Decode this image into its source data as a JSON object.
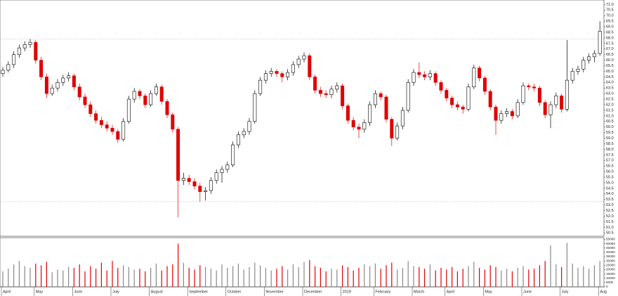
{
  "chart_data": {
    "type": "candlestick",
    "ylim": [
      50.2,
      71.4
    ],
    "yticks": [
      {
        "value": 50.5,
        "label": "50.5"
      },
      {
        "value": 51,
        "label": "51.0"
      },
      {
        "value": 51.5,
        "label": "51.5"
      },
      {
        "value": 52,
        "label": "52.0"
      },
      {
        "value": 52.5,
        "label": "52.5"
      },
      {
        "value": 53,
        "label": "53.0"
      },
      {
        "value": 53.5,
        "label": "53.5"
      },
      {
        "value": 54,
        "label": "54.0"
      },
      {
        "value": 54.5,
        "label": "54.5"
      },
      {
        "value": 55,
        "label": "55.0"
      },
      {
        "value": 55.5,
        "label": "55.5"
      },
      {
        "value": 56,
        "label": "56.0"
      },
      {
        "value": 56.5,
        "label": "56.5"
      },
      {
        "value": 57,
        "label": "57.0"
      },
      {
        "value": 57.5,
        "label": "57.5"
      },
      {
        "value": 58,
        "label": "58.0"
      },
      {
        "value": 58.5,
        "label": "58.5"
      },
      {
        "value": 59,
        "label": "59.0"
      },
      {
        "value": 59.5,
        "label": "59.5"
      },
      {
        "value": 60,
        "label": "60.0"
      },
      {
        "value": 60.5,
        "label": "60.5"
      },
      {
        "value": 61,
        "label": "61.0"
      },
      {
        "value": 61.5,
        "label": "61.5"
      },
      {
        "value": 62,
        "label": "62.0"
      },
      {
        "value": 62.5,
        "label": "62.5"
      },
      {
        "value": 63,
        "label": "63.0"
      },
      {
        "value": 63.5,
        "label": "63.5"
      },
      {
        "value": 64,
        "label": "64.0"
      },
      {
        "value": 64.5,
        "label": "64.5"
      },
      {
        "value": 65,
        "label": "65.0"
      },
      {
        "value": 65.5,
        "label": "65.5"
      },
      {
        "value": 66,
        "label": "66.0"
      },
      {
        "value": 66.5,
        "label": "66.5"
      },
      {
        "value": 67,
        "label": "67.0"
      },
      {
        "value": 67.5,
        "label": "67.5"
      },
      {
        "value": 68,
        "label": "68.0"
      },
      {
        "value": 68.5,
        "label": "68.5"
      },
      {
        "value": 69,
        "label": "69.0"
      },
      {
        "value": 69.5,
        "label": "69.5"
      },
      {
        "value": 70,
        "label": "70.0"
      },
      {
        "value": 70.5,
        "label": "70.5"
      },
      {
        "value": 71,
        "label": "71.0"
      }
    ],
    "ref_lines": [
      67.9,
      53.3
    ],
    "up_color": "#000000",
    "down_color": "#e00000",
    "candles": [
      [
        64.8,
        65.4,
        64.5,
        65.1
      ],
      [
        65.1,
        65.9,
        64.9,
        65.6
      ],
      [
        65.6,
        66.8,
        65.3,
        66.5
      ],
      [
        66.5,
        67.4,
        66.2,
        67.1
      ],
      [
        67.1,
        67.7,
        66.8,
        67.4
      ],
      [
        67.4,
        67.9,
        67.1,
        67.6
      ],
      [
        67.6,
        67.8,
        65.7,
        66.0
      ],
      [
        66.0,
        66.3,
        64.2,
        64.5
      ],
      [
        64.5,
        64.8,
        62.6,
        63.0
      ],
      [
        63.0,
        63.8,
        62.8,
        63.5
      ],
      [
        63.5,
        64.3,
        63.2,
        64.0
      ],
      [
        64.0,
        64.7,
        63.7,
        64.4
      ],
      [
        64.4,
        64.9,
        64.1,
        64.6
      ],
      [
        64.6,
        64.8,
        63.3,
        63.6
      ],
      [
        63.6,
        63.9,
        62.4,
        62.7
      ],
      [
        62.7,
        63.0,
        61.7,
        62.0
      ],
      [
        62.0,
        62.3,
        60.9,
        61.2
      ],
      [
        61.2,
        61.5,
        60.3,
        60.6
      ],
      [
        60.6,
        60.9,
        59.9,
        60.2
      ],
      [
        60.2,
        60.5,
        59.6,
        59.9
      ],
      [
        59.9,
        60.2,
        59.3,
        59.6
      ],
      [
        59.6,
        59.8,
        58.6,
        58.9
      ],
      [
        58.9,
        60.8,
        58.7,
        60.5
      ],
      [
        60.5,
        62.8,
        60.3,
        62.5
      ],
      [
        62.5,
        63.5,
        62.2,
        63.2
      ],
      [
        63.2,
        63.4,
        62.5,
        62.8
      ],
      [
        62.8,
        63.0,
        61.7,
        62.0
      ],
      [
        62.0,
        63.3,
        61.8,
        63.0
      ],
      [
        63.0,
        63.9,
        62.8,
        63.6
      ],
      [
        63.6,
        63.8,
        62.0,
        62.3
      ],
      [
        62.3,
        62.5,
        60.8,
        61.1
      ],
      [
        61.1,
        61.3,
        59.5,
        59.8
      ],
      [
        59.8,
        60.0,
        51.9,
        55.2
      ],
      [
        55.2,
        55.9,
        54.8,
        55.4
      ],
      [
        55.4,
        55.7,
        54.8,
        55.1
      ],
      [
        55.1,
        55.4,
        54.4,
        54.7
      ],
      [
        54.7,
        55.0,
        53.3,
        54.2
      ],
      [
        54.2,
        54.6,
        53.4,
        54.3
      ],
      [
        54.3,
        55.5,
        54.0,
        55.2
      ],
      [
        55.2,
        56.2,
        54.9,
        55.9
      ],
      [
        55.9,
        56.5,
        55.0,
        56.2
      ],
      [
        56.2,
        56.9,
        55.9,
        56.6
      ],
      [
        56.6,
        58.7,
        56.4,
        58.4
      ],
      [
        58.4,
        59.6,
        58.1,
        59.3
      ],
      [
        59.3,
        59.9,
        59.0,
        59.6
      ],
      [
        59.6,
        60.8,
        59.3,
        60.5
      ],
      [
        60.5,
        63.3,
        60.3,
        63.0
      ],
      [
        63.0,
        64.5,
        62.8,
        64.2
      ],
      [
        64.2,
        65.1,
        63.9,
        64.8
      ],
      [
        64.8,
        65.3,
        64.5,
        65.0
      ],
      [
        65.0,
        65.2,
        64.5,
        64.8
      ],
      [
        64.8,
        65.0,
        64.0,
        64.5
      ],
      [
        64.5,
        65.2,
        64.2,
        64.9
      ],
      [
        64.9,
        65.9,
        64.6,
        65.6
      ],
      [
        65.6,
        66.4,
        65.3,
        66.1
      ],
      [
        66.1,
        66.7,
        65.8,
        66.4
      ],
      [
        66.4,
        66.6,
        64.2,
        64.5
      ],
      [
        64.5,
        64.7,
        63.0,
        63.3
      ],
      [
        63.3,
        63.6,
        62.7,
        63.0
      ],
      [
        63.0,
        63.3,
        62.6,
        62.9
      ],
      [
        62.9,
        63.7,
        62.6,
        63.4
      ],
      [
        63.4,
        64.0,
        63.1,
        63.7
      ],
      [
        63.7,
        63.9,
        61.6,
        61.9
      ],
      [
        61.9,
        62.1,
        60.3,
        60.6
      ],
      [
        60.6,
        60.9,
        59.7,
        60.0
      ],
      [
        60.0,
        60.3,
        59.0,
        59.8
      ],
      [
        59.8,
        60.7,
        59.5,
        60.4
      ],
      [
        60.4,
        62.3,
        60.1,
        62.0
      ],
      [
        62.0,
        63.3,
        61.7,
        63.0
      ],
      [
        63.0,
        63.2,
        62.4,
        62.7
      ],
      [
        62.7,
        62.9,
        60.4,
        60.7
      ],
      [
        60.7,
        60.9,
        58.3,
        59.0
      ],
      [
        59.0,
        60.4,
        58.8,
        60.1
      ],
      [
        60.1,
        61.8,
        59.8,
        61.5
      ],
      [
        61.5,
        64.3,
        61.3,
        64.0
      ],
      [
        64.0,
        65.2,
        63.7,
        64.9
      ],
      [
        64.9,
        65.8,
        64.4,
        64.7
      ],
      [
        64.7,
        65.0,
        64.2,
        64.5
      ],
      [
        64.5,
        65.1,
        64.2,
        64.8
      ],
      [
        64.8,
        65.0,
        63.7,
        64.0
      ],
      [
        64.0,
        64.2,
        63.0,
        63.3
      ],
      [
        63.3,
        63.5,
        62.3,
        62.6
      ],
      [
        62.6,
        62.8,
        61.7,
        62.0
      ],
      [
        62.0,
        62.3,
        61.5,
        61.8
      ],
      [
        61.8,
        62.0,
        61.2,
        61.6
      ],
      [
        61.6,
        63.9,
        61.4,
        63.6
      ],
      [
        63.6,
        65.6,
        63.4,
        65.3
      ],
      [
        65.3,
        65.5,
        64.1,
        64.4
      ],
      [
        64.4,
        64.6,
        62.9,
        63.2
      ],
      [
        63.2,
        63.4,
        61.5,
        61.8
      ],
      [
        61.8,
        62.0,
        59.3,
        60.6
      ],
      [
        60.6,
        61.5,
        60.3,
        61.2
      ],
      [
        61.2,
        61.7,
        60.9,
        61.4
      ],
      [
        61.4,
        61.6,
        60.7,
        61.0
      ],
      [
        61.0,
        62.5,
        60.8,
        62.2
      ],
      [
        62.2,
        64.0,
        62.0,
        63.7
      ],
      [
        63.7,
        63.9,
        63.3,
        63.6
      ],
      [
        63.6,
        63.9,
        63.2,
        63.5
      ],
      [
        63.5,
        63.7,
        61.9,
        62.2
      ],
      [
        62.2,
        62.4,
        60.8,
        61.1
      ],
      [
        61.1,
        62.3,
        59.9,
        62.0
      ],
      [
        62.0,
        63.1,
        61.7,
        62.8
      ],
      [
        62.8,
        63.0,
        61.3,
        61.6
      ],
      [
        61.6,
        67.8,
        61.4,
        64.2
      ],
      [
        64.2,
        65.3,
        63.9,
        65.0
      ],
      [
        65.0,
        65.5,
        64.7,
        65.2
      ],
      [
        65.2,
        66.3,
        64.9,
        66.0
      ],
      [
        66.0,
        66.6,
        65.7,
        66.3
      ],
      [
        66.3,
        66.9,
        65.8,
        66.6
      ],
      [
        66.6,
        69.5,
        66.4,
        68.6
      ]
    ],
    "volume": [
      18000,
      21000,
      26000,
      30000,
      24000,
      22000,
      27000,
      25000,
      29000,
      17000,
      20000,
      19000,
      23000,
      22000,
      26000,
      18000,
      24000,
      21000,
      28000,
      19000,
      30000,
      22000,
      25000,
      23000,
      20000,
      21000,
      18000,
      22000,
      27000,
      19000,
      24000,
      26000,
      50000,
      28000,
      22000,
      20000,
      25000,
      23000,
      21000,
      19000,
      26000,
      22000,
      24000,
      27000,
      20000,
      23000,
      28000,
      25000,
      22000,
      19000,
      21000,
      24000,
      20000,
      26000,
      23000,
      29000,
      31000,
      24000,
      22000,
      18000,
      21000,
      20000,
      25000,
      23000,
      19000,
      22000,
      26000,
      24000,
      27000,
      21000,
      25000,
      28000,
      20000,
      22000,
      30000,
      24000,
      23000,
      21000,
      26000,
      19000,
      22000,
      20000,
      23000,
      18000,
      21000,
      24000,
      29000,
      22000,
      20000,
      25000,
      23000,
      19000,
      21000,
      18000,
      22000,
      24000,
      20000,
      21000,
      25000,
      30000,
      48000,
      26000,
      23000,
      51000,
      27000,
      22000,
      24000,
      21000,
      25000,
      30000
    ],
    "vol_ylim": [
      0,
      57000
    ],
    "vol_ticks": [
      0,
      5000,
      10000,
      15000,
      20000,
      25000,
      30000,
      35000,
      40000,
      45000,
      50000,
      55000
    ],
    "vol_color": "#888888",
    "categories": [
      "April",
      null,
      null,
      null,
      null,
      null,
      "May",
      null,
      null,
      null,
      null,
      null,
      null,
      "June",
      null,
      null,
      null,
      null,
      null,
      null,
      "July",
      null,
      null,
      null,
      null,
      null,
      null,
      "August",
      null,
      null,
      null,
      null,
      null,
      null,
      "September",
      null,
      null,
      null,
      null,
      null,
      null,
      "October",
      null,
      null,
      null,
      null,
      null,
      null,
      "November",
      null,
      null,
      null,
      null,
      null,
      null,
      "December",
      null,
      null,
      null,
      null,
      null,
      null,
      "2019",
      null,
      null,
      null,
      null,
      null,
      "February",
      null,
      null,
      null,
      null,
      null,
      null,
      "March",
      null,
      null,
      null,
      null,
      null,
      "April",
      null,
      null,
      null,
      null,
      null,
      null,
      "May",
      null,
      null,
      null,
      null,
      null,
      null,
      "June",
      null,
      null,
      null,
      null,
      null,
      null,
      "July",
      null,
      null,
      null,
      null,
      null,
      null,
      "Aug"
    ]
  }
}
